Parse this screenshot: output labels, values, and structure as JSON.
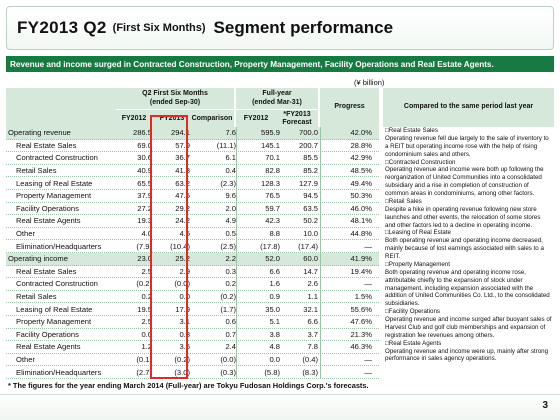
{
  "title": {
    "main": "FY2013 Q2",
    "sub": "(First Six Months)",
    "segment": "Segment performance"
  },
  "banner": "Revenue and income surged in Contracted Construction, Property Management, Facility Operations and Real Estate Agents.",
  "unit": "(¥ billion)",
  "headers": {
    "q2_group": "Q2 First Six Months\n(ended Sep-30)",
    "fy_group": "Full-year\n(ended Mar-31)",
    "progress": "Progress",
    "compared": "Compared to the same period last year",
    "fy2012_a": "FY2012",
    "fy2013_a": "FY2013",
    "comparison": "Comparison",
    "fy2012_b": "FY2012",
    "fy2013_forecast": "*FY2013\nForecast"
  },
  "rows": [
    {
      "label": "Operating revenue",
      "section": true,
      "v": [
        "286.5",
        "294.1",
        "7.6",
        "595.9",
        "700.0",
        "42.0%"
      ]
    },
    {
      "label": "Real Estate Sales",
      "section": false,
      "v": [
        "69.0",
        "57.9",
        "(11.1)",
        "145.1",
        "200.7",
        "28.8%"
      ]
    },
    {
      "label": "Contracted Construction",
      "section": false,
      "v": [
        "30.6",
        "36.7",
        "6.1",
        "70.1",
        "85.5",
        "42.9%"
      ]
    },
    {
      "label": "Retail Sales",
      "section": false,
      "v": [
        "40.9",
        "41.3",
        "0.4",
        "82.8",
        "85.2",
        "48.5%"
      ]
    },
    {
      "label": "Leasing of Real Estate",
      "section": false,
      "v": [
        "65.5",
        "63.2",
        "(2.3)",
        "128.3",
        "127.9",
        "49.4%"
      ]
    },
    {
      "label": "Property Management",
      "section": false,
      "v": [
        "37.9",
        "47.5",
        "9.6",
        "76.5",
        "94.5",
        "50.3%"
      ]
    },
    {
      "label": "Facility Operations",
      "section": false,
      "v": [
        "27.2",
        "29.2",
        "2.0",
        "59.7",
        "63.5",
        "46.0%"
      ]
    },
    {
      "label": "Real Estate Agents",
      "section": false,
      "v": [
        "19.3",
        "24.2",
        "4.9",
        "42.3",
        "50.2",
        "48.1%"
      ]
    },
    {
      "label": "Other",
      "section": false,
      "v": [
        "4.0",
        "4.5",
        "0.5",
        "8.8",
        "10.0",
        "44.8%"
      ]
    },
    {
      "label": "Elimination/Headquarters",
      "section": false,
      "v": [
        "(7.9)",
        "(10.4)",
        "(2.5)",
        "(17.8)",
        "(17.4)",
        "—"
      ]
    },
    {
      "label": "Operating income",
      "section": true,
      "v": [
        "23.0",
        "25.2",
        "2.2",
        "52.0",
        "60.0",
        "41.9%"
      ]
    },
    {
      "label": "Real Estate Sales",
      "section": false,
      "v": [
        "2.5",
        "2.9",
        "0.3",
        "6.6",
        "14.7",
        "19.4%"
      ]
    },
    {
      "label": "Contracted Construction",
      "section": false,
      "v": [
        "(0.2)",
        "(0.0)",
        "0.2",
        "1.6",
        "2.6",
        "—"
      ]
    },
    {
      "label": "Retail Sales",
      "section": false,
      "v": [
        "0.2",
        "0.0",
        "(0.2)",
        "0.9",
        "1.1",
        "1.5%"
      ]
    },
    {
      "label": "Leasing of Real Estate",
      "section": false,
      "v": [
        "19.5",
        "17.9",
        "(1.7)",
        "35.0",
        "32.1",
        "55.6%"
      ]
    },
    {
      "label": "Property Management",
      "section": false,
      "v": [
        "2.5",
        "3.1",
        "0.6",
        "5.1",
        "6.6",
        "47.6%"
      ]
    },
    {
      "label": "Facility Operations",
      "section": false,
      "v": [
        "0.0",
        "0.8",
        "0.7",
        "3.8",
        "3.7",
        "21.3%"
      ]
    },
    {
      "label": "Real Estate Agents",
      "section": false,
      "v": [
        "1.2",
        "3.6",
        "2.4",
        "4.8",
        "7.8",
        "46.3%"
      ]
    },
    {
      "label": "Other",
      "section": false,
      "v": [
        "(0.1)",
        "(0.2)",
        "(0.0)",
        "0.0",
        "(0.4)",
        "—"
      ]
    },
    {
      "label": "Elimination/Headquarters",
      "section": false,
      "v": [
        "(2.7)",
        "(3.0)",
        "(0.3)",
        "(5.8)",
        "(8.3)",
        "—"
      ]
    }
  ],
  "notes": [
    {
      "heading": "□Real Estate Sales",
      "text": "Operating revenue fell due largely to the sale of inventory to a REIT but operating income rose with the help of rising condominium sales and others."
    },
    {
      "heading": "□Contracted Construction",
      "text": "Operating revenue and income were both up following the reorganization of United Communities into a consolidated subsidiary and a rise in completion of construction of common areas in condominiums, among other factors."
    },
    {
      "heading": "□Retail Sales",
      "text": "Despite a hike in operating revenue following new store launches and other events, the relocation of some stores and other factors led to a decline in operating income."
    },
    {
      "heading": "□Leasing of Real Estate",
      "text": "Both operating revenue and operating income decreased, mainly because of lost earnings associated with sales to a REIT."
    },
    {
      "heading": "□Property Management",
      "text": "Both operating revenue and operating income rose, attributable chiefly to the expansion of stock under management, including expansion associated with the addition of United Communities Co. Ltd., to the consolidated subsidiaries."
    },
    {
      "heading": "□Facility Operations",
      "text": "Operating revenue and income surged after buoyant sales of Harvest Club and golf club memberships and expansion of registration fee revenues among others."
    },
    {
      "heading": "□Real Estate Agents",
      "text": "Operating revenue and income were up, mainly after strong performance in sales agency operations."
    }
  ],
  "footnote": "* The figures for the year ending March 2014 (Full-year) are Tokyu Fudosan Holdings Corp.'s forecasts.",
  "page_number": "3",
  "colors": {
    "brand_green": "#177a42",
    "header_fill": "#d6e8da",
    "highlight_red": "#e02a23"
  }
}
